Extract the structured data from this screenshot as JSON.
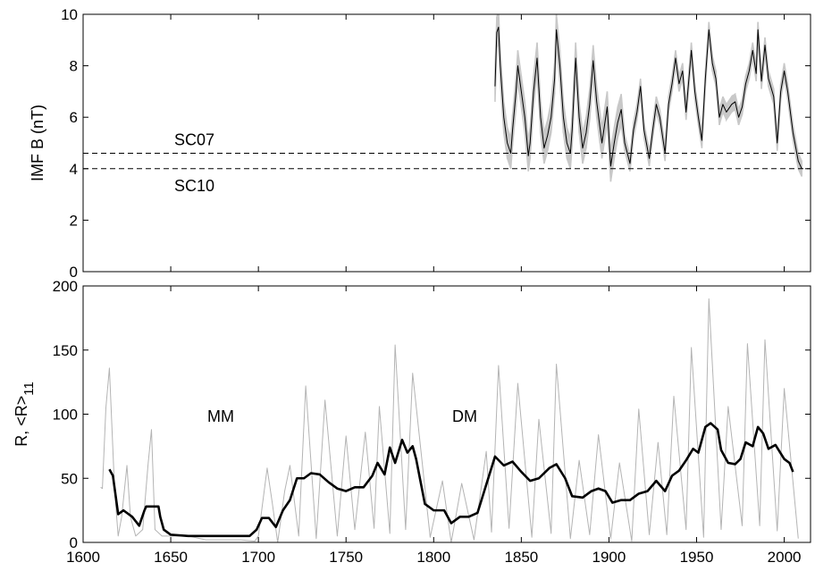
{
  "chart_data": [
    {
      "type": "line",
      "ylabel": "IMF B (nT)",
      "xlim": [
        1600,
        2015
      ],
      "xticks": [
        1600,
        1650,
        1700,
        1750,
        1800,
        1850,
        1900,
        1950,
        2000
      ],
      "ylim": [
        0,
        10
      ],
      "yticks": [
        0,
        2,
        4,
        6,
        8,
        10
      ],
      "x": [
        1835,
        1836,
        1837,
        1838,
        1840,
        1842,
        1844,
        1845,
        1847,
        1848,
        1850,
        1852,
        1854,
        1855,
        1857,
        1859,
        1861,
        1863,
        1865,
        1867,
        1869,
        1870,
        1872,
        1874,
        1876,
        1878,
        1879,
        1881,
        1883,
        1885,
        1887,
        1889,
        1891,
        1893,
        1896,
        1899,
        1901,
        1903,
        1905,
        1907,
        1909,
        1912,
        1914,
        1916,
        1918,
        1920,
        1923,
        1925,
        1927,
        1929,
        1932,
        1934,
        1936,
        1938,
        1940,
        1942,
        1944,
        1947,
        1949,
        1951,
        1953,
        1955,
        1957,
        1959,
        1961,
        1963,
        1965,
        1967,
        1970,
        1972,
        1974,
        1976,
        1978,
        1980,
        1982,
        1984,
        1985,
        1987,
        1989,
        1991,
        1994,
        1996,
        1998,
        2000,
        2002,
        2005,
        2008,
        2010
      ],
      "series": [
        {
          "color": "#000000",
          "band_color": "#c8c8c8",
          "values": [
            7.2,
            9.3,
            9.5,
            8,
            6,
            5,
            4.6,
            5.5,
            7,
            8,
            7,
            6,
            4.5,
            5,
            7,
            8.3,
            6,
            4.8,
            5.3,
            6,
            7.5,
            9.4,
            8,
            6,
            5,
            4.6,
            5.5,
            8.3,
            6,
            4.8,
            5.4,
            6.5,
            8.2,
            6.6,
            5,
            6.4,
            4.1,
            5,
            5.8,
            6.3,
            5,
            4.2,
            5.5,
            6.2,
            7.2,
            5.5,
            4.4,
            5.5,
            6.5,
            6,
            4.6,
            6.5,
            7.3,
            8.3,
            7.3,
            7.8,
            6.2,
            8.6,
            7,
            6,
            5.1,
            7.5,
            9.4,
            8.1,
            7.5,
            6,
            6.5,
            6.2,
            6.5,
            6.6,
            6,
            6.4,
            7.3,
            7.8,
            8.6,
            7.7,
            9.4,
            7.4,
            8.8,
            7.5,
            6.8,
            5,
            7,
            7.8,
            7,
            5.4,
            4.3,
            4
          ],
          "error": [
            0.6,
            0.6,
            0.6,
            0.6,
            0.6,
            0.6,
            0.6,
            0.6,
            0.6,
            0.6,
            0.6,
            0.6,
            0.6,
            0.6,
            0.6,
            0.6,
            0.6,
            0.6,
            0.6,
            0.6,
            0.6,
            0.6,
            0.6,
            0.6,
            0.6,
            0.6,
            0.6,
            0.6,
            0.6,
            0.6,
            0.6,
            0.6,
            0.6,
            0.6,
            0.6,
            0.6,
            0.6,
            0.6,
            0.6,
            0.6,
            0.3,
            0.3,
            0.3,
            0.3,
            0.3,
            0.3,
            0.3,
            0.3,
            0.3,
            0.3,
            0.3,
            0.3,
            0.3,
            0.3,
            0.3,
            0.3,
            0.3,
            0.3,
            0.3,
            0.3,
            0.3,
            0.3,
            0.3,
            0.3,
            0.3,
            0.3,
            0.3,
            0.3,
            0.3,
            0.3,
            0.3,
            0.3,
            0.3,
            0.3,
            0.3,
            0.3,
            0.3,
            0.3,
            0.3,
            0.3,
            0.3,
            0.3,
            0.3,
            0.3,
            0.3,
            0.3,
            0.3,
            0.3
          ]
        }
      ],
      "hlines": [
        {
          "value": 4.6,
          "label": "SC07"
        },
        {
          "value": 4,
          "label": "SC10"
        }
      ]
    },
    {
      "type": "line",
      "ylabel": "R, <R>",
      "ylabel_subscript": "11",
      "xlim": [
        1600,
        2015
      ],
      "xticks": [
        1600,
        1650,
        1700,
        1750,
        1800,
        1850,
        1900,
        1950,
        2000
      ],
      "ylim": [
        0,
        200
      ],
      "yticks": [
        0,
        50,
        100,
        150,
        200
      ],
      "series": [
        {
          "color": "#b4b4b4",
          "x": [
            1610,
            1611,
            1613,
            1615,
            1618,
            1620,
            1622,
            1625,
            1627,
            1630,
            1634,
            1637,
            1639,
            1641,
            1645,
            1650,
            1660,
            1670,
            1680,
            1690,
            1698,
            1700,
            1705,
            1708,
            1711,
            1715,
            1718,
            1723,
            1727,
            1733,
            1738,
            1745,
            1750,
            1755,
            1761,
            1766,
            1769,
            1775,
            1778,
            1784,
            1788,
            1798,
            1805,
            1810,
            1816,
            1823,
            1830,
            1833,
            1837,
            1843,
            1848,
            1856,
            1860,
            1867,
            1870,
            1878,
            1883,
            1889,
            1894,
            1901,
            1906,
            1913,
            1917,
            1923,
            1928,
            1933,
            1937,
            1944,
            1947,
            1954,
            1957,
            1964,
            1968,
            1976,
            1979,
            1986,
            1989,
            1996,
            2000,
            2008
          ],
          "values": [
            43,
            42,
            105,
            136,
            40,
            5,
            20,
            60,
            20,
            5,
            10,
            60,
            88,
            10,
            5,
            5,
            5,
            2,
            2,
            2,
            1,
            5,
            58,
            30,
            0,
            40,
            60,
            5,
            122,
            3,
            111,
            5,
            83,
            10,
            86,
            11,
            106,
            7,
            154,
            10,
            132,
            4,
            48,
            0,
            46,
            2,
            71,
            8,
            138,
            11,
            124,
            4,
            96,
            7,
            139,
            3,
            64,
            6,
            84,
            3,
            62,
            1,
            104,
            6,
            78,
            6,
            114,
            10,
            152,
            4,
            190,
            10,
            106,
            13,
            155,
            13,
            158,
            9,
            120,
            3
          ]
        },
        {
          "color": "#000000",
          "x": [
            1615,
            1617,
            1620,
            1623,
            1628,
            1632,
            1635,
            1636,
            1643,
            1644,
            1646,
            1650,
            1660,
            1680,
            1695,
            1699,
            1702,
            1706,
            1710,
            1714,
            1718,
            1722,
            1726,
            1730,
            1735,
            1740,
            1745,
            1750,
            1755,
            1760,
            1765,
            1768,
            1772,
            1775,
            1778,
            1782,
            1785,
            1788,
            1790,
            1795,
            1800,
            1806,
            1810,
            1815,
            1820,
            1825,
            1830,
            1835,
            1840,
            1845,
            1850,
            1855,
            1860,
            1866,
            1870,
            1875,
            1879,
            1885,
            1890,
            1894,
            1898,
            1902,
            1907,
            1912,
            1917,
            1922,
            1927,
            1932,
            1936,
            1940,
            1944,
            1948,
            1951,
            1955,
            1958,
            1962,
            1964,
            1968,
            1972,
            1975,
            1978,
            1982,
            1985,
            1988,
            1991,
            1995,
            2000,
            2003,
            2005
          ],
          "values": [
            57,
            52,
            22,
            25,
            20,
            13,
            25,
            28,
            28,
            20,
            10,
            6,
            5,
            5,
            5,
            10,
            19,
            19,
            12,
            25,
            33,
            50,
            50,
            54,
            53,
            47,
            42,
            40,
            43,
            43,
            52,
            62,
            53,
            74,
            62,
            80,
            70,
            75,
            65,
            30,
            25,
            25,
            15,
            20,
            20,
            23,
            45,
            67,
            60,
            63,
            55,
            48,
            50,
            58,
            61,
            50,
            36,
            35,
            40,
            42,
            40,
            31,
            33,
            33,
            38,
            40,
            48,
            40,
            52,
            56,
            64,
            73,
            70,
            90,
            93,
            88,
            72,
            62,
            61,
            65,
            78,
            75,
            90,
            85,
            73,
            76,
            65,
            62,
            55
          ]
        }
      ],
      "annotations": [
        "MM",
        "DM"
      ]
    }
  ]
}
